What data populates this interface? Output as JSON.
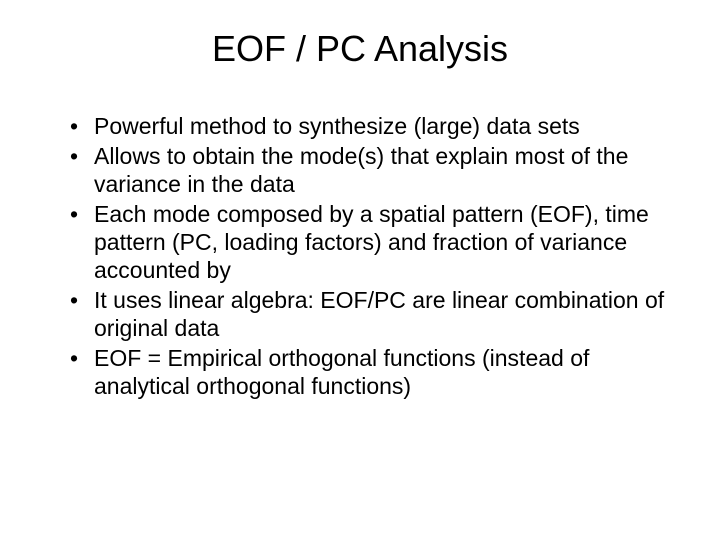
{
  "slide": {
    "title": "EOF / PC Analysis",
    "title_fontsize": 36,
    "body_fontsize": 23,
    "background_color": "#ffffff",
    "text_color": "#000000",
    "font_family": "Arial",
    "bullets": [
      "Powerful method to synthesize (large) data sets",
      "Allows to obtain the mode(s) that explain most of the variance in the data",
      "Each mode composed by a spatial pattern (EOF), time pattern (PC, loading factors) and fraction of variance accounted by",
      "It uses linear algebra: EOF/PC are linear combination of original data",
      "EOF = Empirical orthogonal functions (instead of analytical orthogonal functions)"
    ]
  }
}
